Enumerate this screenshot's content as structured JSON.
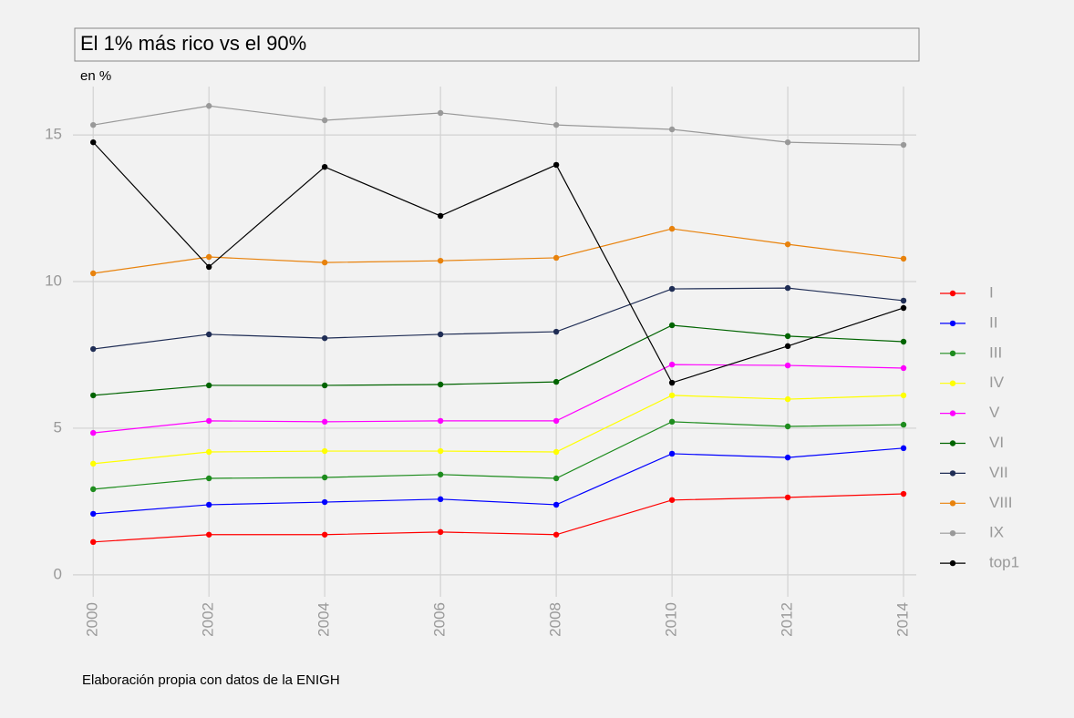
{
  "chart_data": {
    "type": "line",
    "title": "El 1% más rico vs el 90%",
    "subtitle": "en %",
    "caption": "Elaboración propia con datos de la ENIGH",
    "x": [
      2000,
      2002,
      2004,
      2006,
      2008,
      2010,
      2012,
      2014
    ],
    "xlim": [
      1999.65,
      2014.22
    ],
    "xticks": [
      2000,
      2002,
      2004,
      2006,
      2008,
      2010,
      2012,
      2014
    ],
    "ylim": [
      -0.75,
      16.65
    ],
    "yticks": [
      0,
      5,
      10,
      15
    ],
    "grid": true,
    "legend": "right",
    "series": [
      {
        "name": "I",
        "color": "#ff0000",
        "values": [
          1.12,
          1.37,
          1.37,
          1.46,
          1.37,
          2.55,
          2.64,
          2.76
        ]
      },
      {
        "name": "II",
        "color": "#0000ff",
        "values": [
          2.08,
          2.39,
          2.48,
          2.58,
          2.39,
          4.13,
          4.0,
          4.32
        ]
      },
      {
        "name": "III",
        "color": "#1e8c1e",
        "values": [
          2.92,
          3.29,
          3.32,
          3.42,
          3.29,
          5.22,
          5.06,
          5.12
        ]
      },
      {
        "name": "IV",
        "color": "#ffff00",
        "values": [
          3.79,
          4.19,
          4.22,
          4.22,
          4.19,
          6.12,
          5.99,
          6.12
        ]
      },
      {
        "name": "V",
        "color": "#ff00ff",
        "values": [
          4.84,
          5.25,
          5.22,
          5.25,
          5.25,
          7.17,
          7.14,
          7.05
        ]
      },
      {
        "name": "VI",
        "color": "#006400",
        "values": [
          6.12,
          6.46,
          6.46,
          6.49,
          6.58,
          8.51,
          8.14,
          7.95
        ]
      },
      {
        "name": "VII",
        "color": "#1f2d55",
        "values": [
          7.7,
          8.2,
          8.07,
          8.2,
          8.29,
          9.75,
          9.78,
          9.35
        ]
      },
      {
        "name": "VIII",
        "color": "#e8820c",
        "values": [
          10.28,
          10.84,
          10.65,
          10.71,
          10.81,
          11.8,
          11.27,
          10.78
        ]
      },
      {
        "name": "IX",
        "color": "#999999",
        "values": [
          15.34,
          15.99,
          15.5,
          15.75,
          15.34,
          15.19,
          14.75,
          14.66
        ]
      },
      {
        "name": "top1",
        "color": "#000000",
        "values": [
          14.75,
          10.5,
          13.91,
          12.24,
          13.98,
          6.55,
          7.8,
          9.1
        ]
      }
    ]
  }
}
